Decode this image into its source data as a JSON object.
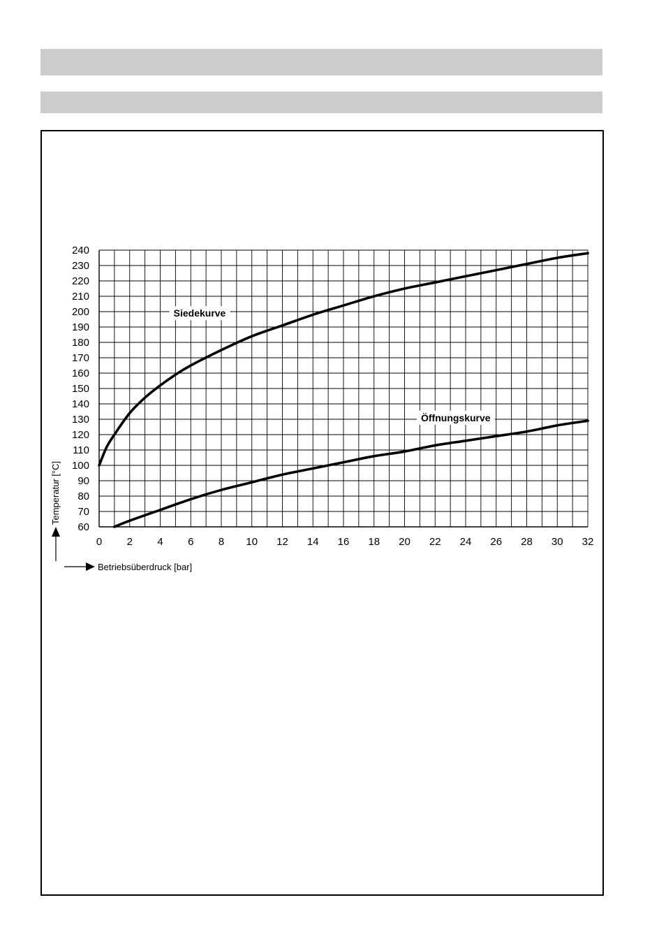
{
  "chart_data": {
    "type": "line",
    "xlabel": "Betriebsüberdruck [bar]",
    "ylabel": "Temperatur [°C]",
    "xlim": [
      0,
      32
    ],
    "ylim": [
      60,
      240
    ],
    "xticks": [
      0,
      2,
      4,
      6,
      8,
      10,
      12,
      14,
      16,
      18,
      20,
      22,
      24,
      26,
      28,
      30,
      32
    ],
    "yticks": [
      60,
      70,
      80,
      90,
      100,
      110,
      120,
      130,
      140,
      150,
      160,
      170,
      180,
      190,
      200,
      210,
      220,
      230,
      240
    ],
    "grid": true,
    "series": [
      {
        "name": "Siedekurve",
        "x": [
          0,
          0.5,
          1,
          2,
          3,
          4,
          5,
          6,
          8,
          10,
          12,
          14,
          16,
          18,
          20,
          22,
          24,
          26,
          28,
          30,
          32
        ],
        "y": [
          100,
          112,
          120,
          134,
          144,
          152,
          159,
          165,
          175,
          184,
          191,
          198,
          204,
          210,
          215,
          219,
          223,
          227,
          231,
          235,
          238
        ]
      },
      {
        "name": "Öffnungskurve",
        "x": [
          1,
          2,
          4,
          6,
          8,
          10,
          12,
          14,
          16,
          18,
          20,
          22,
          24,
          26,
          28,
          30,
          32
        ],
        "y": [
          60,
          64,
          71,
          78,
          84,
          89,
          94,
          98,
          102,
          106,
          109,
          113,
          116,
          119,
          122,
          126,
          129
        ]
      }
    ]
  }
}
